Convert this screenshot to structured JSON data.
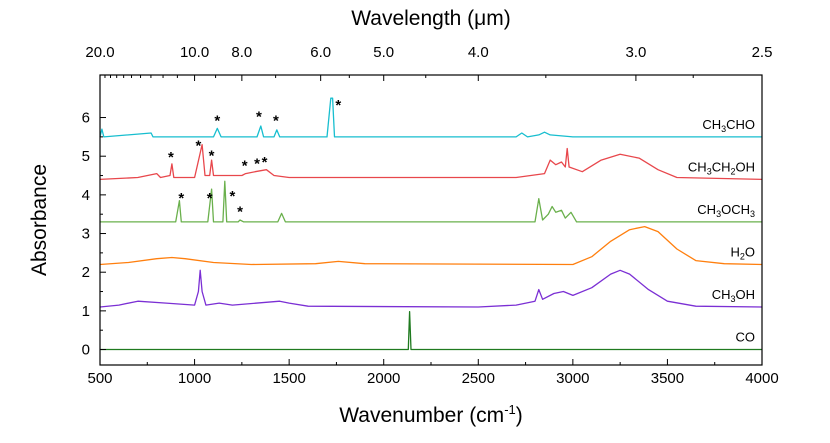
{
  "chart_data": {
    "type": "line",
    "xlabel": "Wavenumber (cm⁻¹)",
    "xlabel_parts": [
      "Wavenumber (cm",
      "-1",
      ")"
    ],
    "ylabel": "Absorbance",
    "top_axis_label": "Wavelength (μm)",
    "xlim": [
      500,
      4000
    ],
    "ylim": [
      -0.4,
      7.1
    ],
    "x_ticks": [
      500,
      1000,
      1500,
      2000,
      2500,
      3000,
      3500,
      4000
    ],
    "x_tick_labels": [
      "500",
      "1000",
      "1500",
      "2000",
      "2500",
      "3000",
      "3500",
      "4000"
    ],
    "y_ticks": [
      0,
      1,
      2,
      3,
      4,
      5,
      6
    ],
    "y_tick_labels": [
      "0",
      "1",
      "2",
      "3",
      "4",
      "5",
      "6"
    ],
    "top_ticks_um": [
      20.0,
      10.0,
      8.0,
      6.0,
      5.0,
      4.0,
      3.0,
      2.5
    ],
    "top_tick_labels": [
      "20.0",
      "10.0",
      "8.0",
      "6.0",
      "5.0",
      "4.0",
      "3.0",
      "2.5"
    ],
    "grid": false,
    "legend": "none",
    "series": [
      {
        "name": "CH3CHO",
        "label_parts": [
          [
            "CH",
            false
          ],
          [
            "3",
            true
          ],
          [
            "CHO",
            false
          ]
        ],
        "color": "#17becf",
        "baseline": 5.5,
        "points": [
          [
            500,
            5.5
          ],
          [
            510,
            5.7
          ],
          [
            520,
            5.5
          ],
          [
            770,
            5.6
          ],
          [
            780,
            5.5
          ],
          [
            1100,
            5.5
          ],
          [
            1120,
            5.72
          ],
          [
            1140,
            5.5
          ],
          [
            1330,
            5.5
          ],
          [
            1350,
            5.78
          ],
          [
            1365,
            5.5
          ],
          [
            1420,
            5.5
          ],
          [
            1435,
            5.68
          ],
          [
            1450,
            5.5
          ],
          [
            1700,
            5.5
          ],
          [
            1720,
            6.5
          ],
          [
            1730,
            6.5
          ],
          [
            1740,
            5.5
          ],
          [
            2700,
            5.5
          ],
          [
            2730,
            5.6
          ],
          [
            2760,
            5.5
          ],
          [
            2820,
            5.55
          ],
          [
            2850,
            5.62
          ],
          [
            2880,
            5.55
          ],
          [
            3000,
            5.5
          ],
          [
            4000,
            5.5
          ]
        ],
        "stars": [
          [
            1120,
            5.95
          ],
          [
            1340,
            6.05
          ],
          [
            1430,
            5.95
          ],
          [
            1760,
            6.35
          ]
        ]
      },
      {
        "name": "CH3CH2OH",
        "label_parts": [
          [
            "CH",
            false
          ],
          [
            "3",
            true
          ],
          [
            "CH",
            false
          ],
          [
            "2",
            true
          ],
          [
            "OH",
            false
          ]
        ],
        "color": "#e8474c",
        "baseline": 4.4,
        "points": [
          [
            500,
            4.4
          ],
          [
            700,
            4.45
          ],
          [
            800,
            4.55
          ],
          [
            820,
            4.45
          ],
          [
            870,
            4.5
          ],
          [
            880,
            4.8
          ],
          [
            890,
            4.45
          ],
          [
            1000,
            4.45
          ],
          [
            1040,
            5.3
          ],
          [
            1055,
            4.5
          ],
          [
            1080,
            4.5
          ],
          [
            1090,
            4.9
          ],
          [
            1100,
            4.5
          ],
          [
            1250,
            4.5
          ],
          [
            1270,
            4.55
          ],
          [
            1320,
            4.6
          ],
          [
            1380,
            4.65
          ],
          [
            1420,
            4.5
          ],
          [
            1500,
            4.45
          ],
          [
            2700,
            4.45
          ],
          [
            2850,
            4.55
          ],
          [
            2880,
            4.9
          ],
          [
            2910,
            4.78
          ],
          [
            2940,
            4.85
          ],
          [
            2960,
            4.72
          ],
          [
            2970,
            5.2
          ],
          [
            2980,
            4.72
          ],
          [
            3050,
            4.6
          ],
          [
            3150,
            4.9
          ],
          [
            3250,
            5.05
          ],
          [
            3350,
            4.95
          ],
          [
            3450,
            4.65
          ],
          [
            3550,
            4.45
          ],
          [
            4000,
            4.4
          ]
        ],
        "stars": [
          [
            875,
            5.0
          ],
          [
            1020,
            5.3
          ],
          [
            1090,
            5.05
          ],
          [
            1265,
            4.78
          ],
          [
            1330,
            4.84
          ],
          [
            1370,
            4.87
          ]
        ]
      },
      {
        "name": "CH3OCH3",
        "label_parts": [
          [
            "CH",
            false
          ],
          [
            "3",
            true
          ],
          [
            "OCH",
            false
          ],
          [
            "3",
            true
          ]
        ],
        "color": "#6ab04c",
        "baseline": 3.3,
        "points": [
          [
            500,
            3.3
          ],
          [
            900,
            3.3
          ],
          [
            920,
            3.85
          ],
          [
            930,
            3.3
          ],
          [
            1070,
            3.3
          ],
          [
            1090,
            4.15
          ],
          [
            1100,
            3.3
          ],
          [
            1150,
            3.3
          ],
          [
            1160,
            4.35
          ],
          [
            1170,
            3.3
          ],
          [
            1230,
            3.3
          ],
          [
            1240,
            3.35
          ],
          [
            1260,
            3.3
          ],
          [
            1440,
            3.3
          ],
          [
            1460,
            3.52
          ],
          [
            1480,
            3.3
          ],
          [
            2000,
            3.3
          ],
          [
            2800,
            3.3
          ],
          [
            2820,
            3.9
          ],
          [
            2840,
            3.35
          ],
          [
            2870,
            3.5
          ],
          [
            2890,
            3.7
          ],
          [
            2910,
            3.55
          ],
          [
            2940,
            3.6
          ],
          [
            2960,
            3.4
          ],
          [
            2990,
            3.55
          ],
          [
            3020,
            3.3
          ],
          [
            4000,
            3.3
          ]
        ],
        "stars": [
          [
            930,
            3.95
          ],
          [
            1080,
            3.95
          ],
          [
            1200,
            4.0
          ],
          [
            1240,
            3.6
          ]
        ]
      },
      {
        "name": "H2O",
        "label_parts": [
          [
            "H",
            false
          ],
          [
            "2",
            true
          ],
          [
            "O",
            false
          ]
        ],
        "color": "#ff7f0e",
        "baseline": 2.2,
        "points": [
          [
            500,
            2.2
          ],
          [
            650,
            2.25
          ],
          [
            800,
            2.35
          ],
          [
            880,
            2.38
          ],
          [
            950,
            2.35
          ],
          [
            1100,
            2.25
          ],
          [
            1300,
            2.2
          ],
          [
            1640,
            2.22
          ],
          [
            1760,
            2.28
          ],
          [
            1900,
            2.22
          ],
          [
            3000,
            2.2
          ],
          [
            3100,
            2.4
          ],
          [
            3200,
            2.8
          ],
          [
            3300,
            3.1
          ],
          [
            3380,
            3.18
          ],
          [
            3450,
            3.05
          ],
          [
            3550,
            2.6
          ],
          [
            3650,
            2.3
          ],
          [
            3800,
            2.22
          ],
          [
            4000,
            2.2
          ]
        ],
        "stars": []
      },
      {
        "name": "CH3OH",
        "label_parts": [
          [
            "CH",
            false
          ],
          [
            "3",
            true
          ],
          [
            "OH",
            false
          ]
        ],
        "color": "#7b2fd4",
        "baseline": 1.1,
        "points": [
          [
            500,
            1.1
          ],
          [
            600,
            1.15
          ],
          [
            700,
            1.25
          ],
          [
            850,
            1.2
          ],
          [
            1000,
            1.15
          ],
          [
            1020,
            1.5
          ],
          [
            1030,
            2.05
          ],
          [
            1040,
            1.5
          ],
          [
            1060,
            1.15
          ],
          [
            1130,
            1.2
          ],
          [
            1200,
            1.15
          ],
          [
            1450,
            1.25
          ],
          [
            1500,
            1.2
          ],
          [
            1600,
            1.12
          ],
          [
            2500,
            1.1
          ],
          [
            2700,
            1.15
          ],
          [
            2800,
            1.25
          ],
          [
            2820,
            1.55
          ],
          [
            2840,
            1.3
          ],
          [
            2900,
            1.45
          ],
          [
            2950,
            1.5
          ],
          [
            3000,
            1.4
          ],
          [
            3100,
            1.6
          ],
          [
            3200,
            1.95
          ],
          [
            3250,
            2.05
          ],
          [
            3300,
            1.95
          ],
          [
            3400,
            1.55
          ],
          [
            3500,
            1.25
          ],
          [
            3650,
            1.12
          ],
          [
            4000,
            1.1
          ]
        ],
        "stars": []
      },
      {
        "name": "CO",
        "label_parts": [
          [
            "CO",
            false
          ]
        ],
        "color": "#1f7a1f",
        "baseline": 0.0,
        "points": [
          [
            500,
            0.0
          ],
          [
            2130,
            0.0
          ],
          [
            2137,
            0.98
          ],
          [
            2144,
            0.0
          ],
          [
            4000,
            0.0
          ]
        ],
        "stars": []
      }
    ]
  }
}
